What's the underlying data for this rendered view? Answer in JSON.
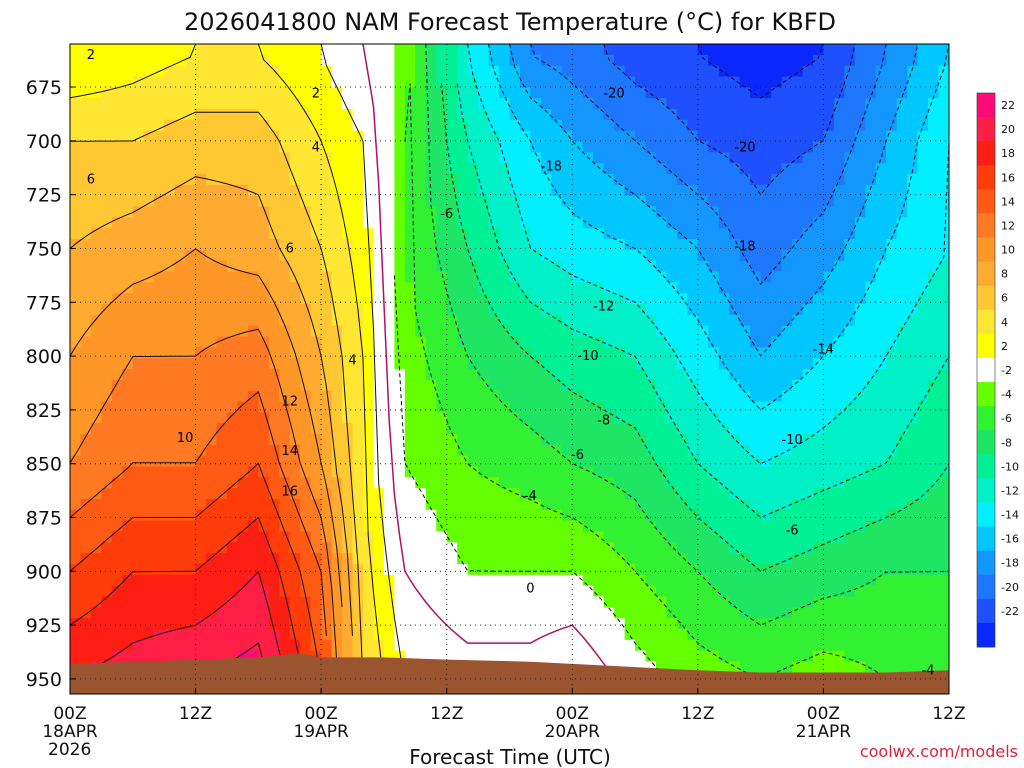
{
  "title": "2026041800 NAM Forecast Temperature (°C) for KBFD",
  "watermark": "coolwx.com/models",
  "chart_data": {
    "type": "heatmap",
    "title": "2026041800 NAM Forecast Temperature (°C) for KBFD",
    "xlabel": "Forecast Time (UTC)",
    "ylabel": "",
    "x_unit": "hours from 2026-04-18 00Z",
    "xlim": [
      0,
      84
    ],
    "ylim": [
      655,
      957
    ],
    "y_reversed": true,
    "x_ticks": [
      {
        "hour": 0,
        "label": "00Z",
        "sub": "18APR",
        "sub2": "2026"
      },
      {
        "hour": 12,
        "label": "12Z",
        "sub": "",
        "sub2": ""
      },
      {
        "hour": 24,
        "label": "00Z",
        "sub": "19APR",
        "sub2": ""
      },
      {
        "hour": 36,
        "label": "12Z",
        "sub": "",
        "sub2": ""
      },
      {
        "hour": 48,
        "label": "00Z",
        "sub": "20APR",
        "sub2": ""
      },
      {
        "hour": 60,
        "label": "12Z",
        "sub": "",
        "sub2": ""
      },
      {
        "hour": 72,
        "label": "00Z",
        "sub": "21APR",
        "sub2": ""
      },
      {
        "hour": 84,
        "label": "12Z",
        "sub": "",
        "sub2": ""
      }
    ],
    "y_ticks": [
      675,
      700,
      725,
      750,
      775,
      800,
      825,
      850,
      875,
      900,
      925,
      950
    ],
    "grid": true,
    "colorbar": {
      "position": "right",
      "bins": [
        {
          "lo": 22,
          "hi": 24,
          "color": "#ff0a78"
        },
        {
          "lo": 20,
          "hi": 22,
          "color": "#ff1e46"
        },
        {
          "lo": 18,
          "hi": 20,
          "color": "#ff1e14"
        },
        {
          "lo": 16,
          "hi": 18,
          "color": "#ff3c0a"
        },
        {
          "lo": 14,
          "hi": 16,
          "color": "#ff5a14"
        },
        {
          "lo": 12,
          "hi": 14,
          "color": "#ff7822"
        },
        {
          "lo": 10,
          "hi": 12,
          "color": "#ff9628"
        },
        {
          "lo": 8,
          "hi": 10,
          "color": "#ffaa30"
        },
        {
          "lo": 6,
          "hi": 8,
          "color": "#ffc832"
        },
        {
          "lo": 4,
          "hi": 6,
          "color": "#ffe632"
        },
        {
          "lo": 2,
          "hi": 4,
          "color": "#ffff00"
        },
        {
          "lo": -2,
          "hi": 2,
          "color": "#ffffff"
        },
        {
          "lo": -4,
          "hi": -2,
          "color": "#64ff00"
        },
        {
          "lo": -6,
          "hi": -4,
          "color": "#32f032"
        },
        {
          "lo": -8,
          "hi": -6,
          "color": "#1ee664"
        },
        {
          "lo": -10,
          "hi": -8,
          "color": "#00f096"
        },
        {
          "lo": -12,
          "hi": -10,
          "color": "#00f0c8"
        },
        {
          "lo": -14,
          "hi": -12,
          "color": "#00f0ff"
        },
        {
          "lo": -16,
          "hi": -14,
          "color": "#00c8ff"
        },
        {
          "lo": -18,
          "hi": -16,
          "color": "#1496ff"
        },
        {
          "lo": -20,
          "hi": -18,
          "color": "#1e78ff"
        },
        {
          "lo": -22,
          "hi": -20,
          "color": "#1e50ff"
        },
        {
          "lo": -24,
          "hi": -22,
          "color": "#0a28ff"
        }
      ],
      "labels": [
        "22",
        "20",
        "18",
        "16",
        "14",
        "12",
        "10",
        "8",
        "6",
        "4",
        "2",
        "-2",
        "-4",
        "-6",
        "-8",
        "-10",
        "-12",
        "-14",
        "-16",
        "-18",
        "-20",
        "-22"
      ]
    },
    "temp_fields": [
      {
        "hour": 0,
        "temps": [
          2,
          6,
          8,
          10,
          12,
          16,
          20
        ]
      },
      {
        "hour": 6,
        "temps": [
          3,
          6,
          9,
          12,
          14,
          18,
          21
        ]
      },
      {
        "hour": 12,
        "temps": [
          4,
          7,
          10,
          12,
          14,
          18,
          22
        ]
      },
      {
        "hour": 18,
        "temps": [
          4,
          7,
          9,
          13,
          16,
          20,
          23
        ]
      },
      {
        "hour": 24,
        "temps": [
          2,
          4,
          6,
          8,
          10,
          14,
          16
        ]
      },
      {
        "hour": 28,
        "temps": [
          0,
          2,
          3,
          4,
          4,
          5,
          6
        ]
      },
      {
        "hour": 32,
        "temps": [
          -3,
          -4,
          -4,
          -3,
          -2,
          0,
          2
        ]
      },
      {
        "hour": 38,
        "temps": [
          -12,
          -10,
          -8,
          -6,
          -4,
          -2,
          1
        ]
      },
      {
        "hour": 44,
        "temps": [
          -18,
          -14,
          -12,
          -8,
          -5,
          -2,
          1
        ]
      },
      {
        "hour": 48,
        "temps": [
          -19,
          -16,
          -13,
          -9,
          -6,
          -2,
          2
        ]
      },
      {
        "hour": 54,
        "temps": [
          -21,
          -18,
          -14,
          -10,
          -7,
          -4,
          -1
        ]
      },
      {
        "hour": 60,
        "temps": [
          -22,
          -20,
          -16,
          -13,
          -10,
          -6,
          -3
        ]
      },
      {
        "hour": 66,
        "temps": [
          -23,
          -21,
          -19,
          -16,
          -12,
          -8,
          -4
        ]
      },
      {
        "hour": 72,
        "temps": [
          -22,
          -20,
          -17,
          -14,
          -11,
          -7,
          -3
        ]
      },
      {
        "hour": 78,
        "temps": [
          -18,
          -16,
          -14,
          -12,
          -10,
          -6,
          -4
        ]
      },
      {
        "hour": 84,
        "temps": [
          -14,
          -12,
          -12,
          -10,
          -8,
          -6,
          -4
        ]
      }
    ],
    "temp_levels": [
      660,
      700,
      750,
      800,
      850,
      900,
      950
    ],
    "contour_labels": [
      {
        "hour": 2,
        "p": 660,
        "text": "2"
      },
      {
        "hour": 2,
        "p": 718,
        "text": "6"
      },
      {
        "hour": 23.5,
        "p": 678,
        "text": "2"
      },
      {
        "hour": 23.5,
        "p": 703,
        "text": "4"
      },
      {
        "hour": 21,
        "p": 750,
        "text": "6"
      },
      {
        "hour": 27,
        "p": 802,
        "text": "4"
      },
      {
        "hour": 21,
        "p": 821,
        "text": "12"
      },
      {
        "hour": 21,
        "p": 844,
        "text": "14"
      },
      {
        "hour": 21,
        "p": 863,
        "text": "16"
      },
      {
        "hour": 11,
        "p": 838,
        "text": "10"
      },
      {
        "hour": 36,
        "p": 734,
        "text": "-6"
      },
      {
        "hour": 46,
        "p": 712,
        "text": "-18"
      },
      {
        "hour": 52,
        "p": 678,
        "text": "-20"
      },
      {
        "hour": 64.5,
        "p": 703,
        "text": "-20"
      },
      {
        "hour": 64.5,
        "p": 749,
        "text": "-18"
      },
      {
        "hour": 51,
        "p": 777,
        "text": "-12"
      },
      {
        "hour": 49.5,
        "p": 800,
        "text": "-10"
      },
      {
        "hour": 51,
        "p": 830,
        "text": "-8"
      },
      {
        "hour": 48.5,
        "p": 846,
        "text": "-6"
      },
      {
        "hour": 44,
        "p": 865,
        "text": "-4"
      },
      {
        "hour": 44,
        "p": 908,
        "text": "0"
      },
      {
        "hour": 72,
        "p": 797,
        "text": "-14"
      },
      {
        "hour": 69,
        "p": 839,
        "text": "-10"
      },
      {
        "hour": 69,
        "p": 881,
        "text": "-6"
      },
      {
        "hour": 82,
        "p": 946,
        "text": "-4"
      }
    ]
  }
}
